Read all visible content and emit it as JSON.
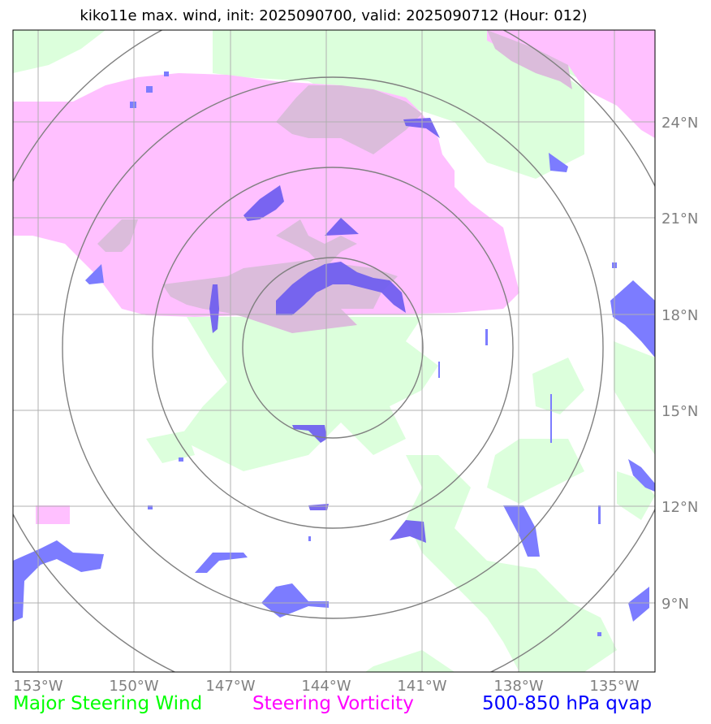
{
  "title": "kiko11e max. wind, init: 2025090700, valid: 2025090712 (Hour: 012)",
  "map": {
    "lon_ticks": [
      "153°W",
      "150°W",
      "147°W",
      "144°W",
      "141°W",
      "138°W",
      "135°W"
    ],
    "lat_ticks": [
      "24°N",
      "21°N",
      "18°N",
      "15°N",
      "12°N",
      "9°N"
    ],
    "center": "144°W, 17°N",
    "range_rings": 4
  },
  "legend": {
    "wind": {
      "label": "Major Steering Wind",
      "color": "#00ff00"
    },
    "vorticity": {
      "label": "Steering Vorticity",
      "color": "#ff00ff"
    },
    "qvap": {
      "label": "500-850 hPa qvap",
      "color": "#0000ff"
    }
  },
  "colors": {
    "wind_fill": "#dcffdc",
    "vort_fill": "#ffc0ff",
    "overlap_fill": "#dbbcdb",
    "qvap_fill": "#6a5af0",
    "qvap_light": "#7c7cff",
    "grid": "#b0b0b0",
    "ring": "#808080"
  }
}
